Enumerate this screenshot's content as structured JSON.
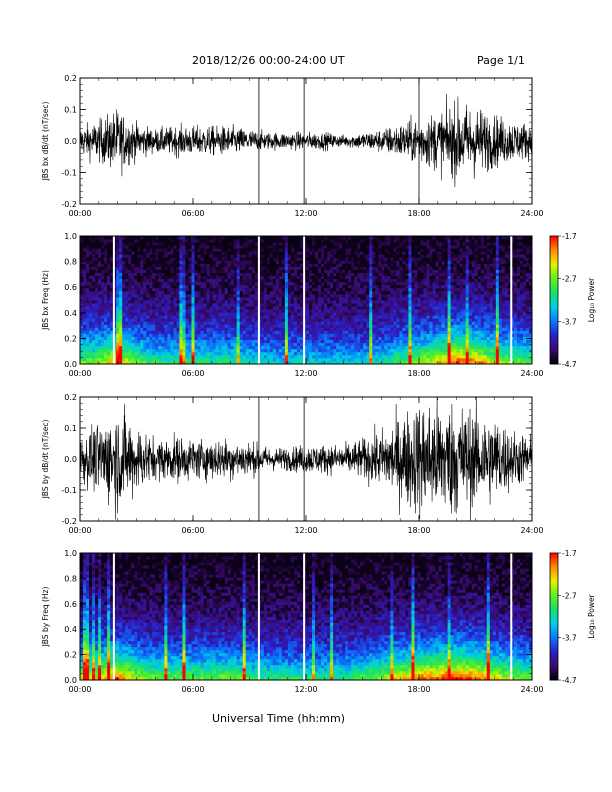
{
  "header": {
    "title": "2018/12/26  00:00-24:00 UT",
    "page": "Page 1/1"
  },
  "x_axis_title": "Universal Time (hh:mm)",
  "colorbar": {
    "label": "Log₁₀ Power",
    "ticks": [
      "-1.7",
      "-2.7",
      "-3.7",
      "-4.7"
    ],
    "range": [
      -4.7,
      -1.7
    ],
    "colormap": [
      "#000000",
      "#3a0a6e",
      "#2a20c8",
      "#0a78ff",
      "#00d0e0",
      "#18e070",
      "#60f020",
      "#e8f000",
      "#ff8c00",
      "#ff0000"
    ]
  },
  "chart_data": [
    {
      "type": "line",
      "panel": "bx-waveform",
      "ylabel": "JBS bx dB/dt (nT/sec)",
      "xticks": [
        "00:00",
        "06:00",
        "12:00",
        "18:00",
        "24:00"
      ],
      "xlim": [
        0,
        24
      ],
      "yticks": [
        "0.2",
        "0.1",
        "0.0",
        "-0.1",
        "-0.2"
      ],
      "ylim": [
        -0.2,
        0.2
      ],
      "gaps_hours": [
        9.5,
        11.9,
        18.0
      ],
      "envelope_hours": [
        0,
        1,
        2,
        3,
        4,
        5,
        6,
        7,
        8,
        9,
        10,
        11,
        12,
        13,
        14,
        15,
        16,
        17,
        18,
        19,
        20,
        21,
        22,
        23,
        24
      ],
      "envelope_amplitude": [
        0.05,
        0.07,
        0.11,
        0.06,
        0.04,
        0.05,
        0.05,
        0.05,
        0.05,
        0.04,
        0.03,
        0.03,
        0.03,
        0.03,
        0.02,
        0.03,
        0.04,
        0.06,
        0.08,
        0.1,
        0.13,
        0.12,
        0.09,
        0.07,
        0.06
      ]
    },
    {
      "type": "heatmap",
      "panel": "bx-spectrogram",
      "ylabel": "JBS bx Freq (Hz)",
      "xticks": [
        "00:00",
        "06:00",
        "12:00",
        "18:00",
        "24:00"
      ],
      "xlim": [
        0,
        24
      ],
      "yticks": [
        "1.0",
        "0.8",
        "0.6",
        "0.4",
        "0.2",
        "0.0"
      ],
      "ylim": [
        0,
        1.0
      ],
      "gaps_hours": [
        1.8,
        9.5,
        11.9,
        22.9
      ],
      "activity_hours": [
        0,
        1,
        2,
        3,
        4,
        5,
        6,
        7,
        8,
        9,
        10,
        11,
        12,
        13,
        14,
        15,
        16,
        17,
        18,
        19,
        20,
        21,
        22,
        23,
        24
      ],
      "activity_level": [
        0.55,
        0.6,
        0.75,
        0.55,
        0.45,
        0.45,
        0.45,
        0.45,
        0.45,
        0.4,
        0.35,
        0.35,
        0.35,
        0.35,
        0.35,
        0.35,
        0.4,
        0.5,
        0.6,
        0.7,
        0.85,
        0.8,
        0.65,
        0.55,
        0.5
      ]
    },
    {
      "type": "line",
      "panel": "by-waveform",
      "ylabel": "JBS by dB/dt (nT/sec)",
      "xticks": [
        "00:00",
        "06:00",
        "12:00",
        "18:00",
        "24:00"
      ],
      "xlim": [
        0,
        24
      ],
      "yticks": [
        "0.2",
        "0.1",
        "0.0",
        "-0.1",
        "-0.2"
      ],
      "ylim": [
        -0.2,
        0.2
      ],
      "gaps_hours": [
        9.5,
        11.9
      ],
      "envelope_hours": [
        0,
        1,
        2,
        3,
        4,
        5,
        6,
        7,
        8,
        9,
        10,
        11,
        12,
        13,
        14,
        15,
        16,
        17,
        18,
        19,
        20,
        21,
        22,
        23,
        24
      ],
      "envelope_amplitude": [
        0.08,
        0.12,
        0.18,
        0.12,
        0.07,
        0.08,
        0.07,
        0.07,
        0.07,
        0.06,
        0.04,
        0.04,
        0.05,
        0.05,
        0.05,
        0.07,
        0.1,
        0.15,
        0.2,
        0.2,
        0.2,
        0.17,
        0.15,
        0.1,
        0.08
      ]
    },
    {
      "type": "heatmap",
      "panel": "by-spectrogram",
      "ylabel": "JBS by Freq (Hz)",
      "xticks": [
        "00:00",
        "06:00",
        "12:00",
        "18:00",
        "24:00"
      ],
      "xlim": [
        0,
        24
      ],
      "yticks": [
        "1.0",
        "0.8",
        "0.6",
        "0.4",
        "0.2",
        "0.0"
      ],
      "ylim": [
        0,
        1.0
      ],
      "gaps_hours": [
        1.8,
        9.5,
        11.9,
        22.9
      ],
      "activity_hours": [
        0,
        1,
        2,
        3,
        4,
        5,
        6,
        7,
        8,
        9,
        10,
        11,
        12,
        13,
        14,
        15,
        16,
        17,
        18,
        19,
        20,
        21,
        22,
        23,
        24
      ],
      "activity_level": [
        0.65,
        0.7,
        0.85,
        0.65,
        0.55,
        0.55,
        0.55,
        0.55,
        0.55,
        0.5,
        0.45,
        0.45,
        0.45,
        0.45,
        0.45,
        0.5,
        0.6,
        0.7,
        0.8,
        0.85,
        0.9,
        0.85,
        0.7,
        0.6,
        0.55
      ]
    }
  ]
}
